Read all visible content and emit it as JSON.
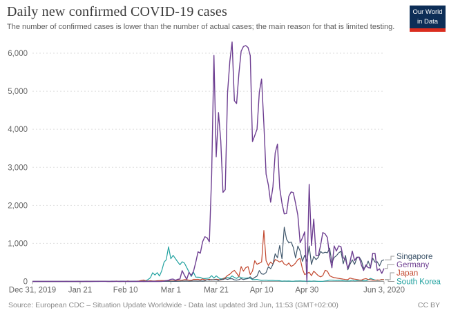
{
  "header": {
    "title": "Daily new confirmed COVID-19 cases",
    "subtitle": "The number of confirmed cases is lower than the number of actual cases; the main reason for that is limited testing.",
    "logo": {
      "line1": "Our World",
      "line2": "in Data",
      "navy": "#0d2e57",
      "red": "#da2c1e"
    }
  },
  "footer": {
    "source": "Source: European CDC – Situation Update Worldwide - Data last updated 3rd Jun, 11:53 (GMT+02:00)",
    "license": "CC BY"
  },
  "chart_data": {
    "type": "line",
    "title": "Daily new confirmed COVID-19 cases",
    "subtitle": "The number of confirmed cases is lower than the number of actual cases; the main reason for that is limited testing.",
    "start_date": "Dec 31, 2019",
    "end_date": "Jun 3, 2020",
    "x_range_days": 155,
    "ylim": [
      0,
      6300
    ],
    "grid": "horizontal-dashed",
    "legend_position": "right-of-line-ends",
    "y_axis": {
      "ticks": [
        0,
        1000,
        2000,
        3000,
        4000,
        5000,
        6000
      ],
      "labels": [
        "0",
        "1,000",
        "2,000",
        "3,000",
        "4,000",
        "5,000",
        "6,000"
      ]
    },
    "x_axis": {
      "ticks": [
        {
          "day": 0,
          "label": "Dec 31, 2019"
        },
        {
          "day": 21,
          "label": "Jan 21"
        },
        {
          "day": 41,
          "label": "Feb 10"
        },
        {
          "day": 61,
          "label": "Mar 1"
        },
        {
          "day": 81,
          "label": "Mar 21"
        },
        {
          "day": 101,
          "label": "Apr 10"
        },
        {
          "day": 121,
          "label": "Apr 30"
        },
        {
          "day": 155,
          "label": "Jun 3, 2020"
        }
      ]
    },
    "series": [
      {
        "name": "Singapore",
        "color": "#3f566b",
        "values": [
          0,
          0,
          0,
          0,
          0,
          0,
          0,
          0,
          0,
          0,
          0,
          0,
          0,
          0,
          0,
          0,
          0,
          0,
          0,
          0,
          0,
          0,
          0,
          1,
          2,
          1,
          0,
          1,
          2,
          3,
          3,
          3,
          2,
          0,
          0,
          6,
          4,
          2,
          3,
          7,
          7,
          3,
          2,
          3,
          5,
          8,
          5,
          0,
          3,
          0,
          1,
          1,
          2,
          5,
          2,
          1,
          0,
          2,
          2,
          4,
          4,
          4,
          2,
          2,
          4,
          5,
          13,
          9,
          12,
          6,
          10,
          12,
          13,
          9,
          14,
          9,
          17,
          47,
          32,
          47,
          40,
          47,
          23,
          54,
          49,
          73,
          52,
          71,
          70,
          42,
          35,
          47,
          74,
          49,
          65,
          75,
          120,
          66,
          106,
          142,
          287,
          198,
          191,
          233,
          386,
          334,
          447,
          728,
          623,
          942,
          596,
          1426,
          1111,
          1016,
          1037,
          897,
          618,
          931,
          799,
          528,
          690,
          528,
          932,
          447,
          657,
          573,
          632,
          788,
          741,
          768,
          753,
          876,
          486,
          632,
          675,
          752,
          793,
          465,
          682,
          305,
          451,
          570,
          448,
          614,
          642,
          548,
          344,
          383,
          533,
          373,
          611,
          506,
          518,
          408,
          544,
          569
        ]
      },
      {
        "name": "Germany",
        "color": "#6d3e91",
        "values": [
          0,
          0,
          0,
          0,
          0,
          0,
          0,
          0,
          0,
          0,
          0,
          0,
          0,
          0,
          0,
          0,
          0,
          0,
          0,
          0,
          0,
          0,
          0,
          0,
          0,
          0,
          0,
          0,
          1,
          3,
          1,
          2,
          2,
          2,
          2,
          0,
          0,
          1,
          1,
          0,
          0,
          2,
          0,
          0,
          1,
          0,
          0,
          0,
          0,
          0,
          0,
          0,
          0,
          0,
          0,
          0,
          1,
          2,
          10,
          21,
          31,
          57,
          62,
          30,
          54,
          66,
          284,
          163,
          55,
          237,
          157,
          271,
          502,
          779,
          743,
          1043,
          1174,
          1144,
          1042,
          2801,
          5940,
          3276,
          4438,
          3697,
          2342,
          2415,
          4954,
          5780,
          6294,
          4751,
          4674,
          5453,
          6050,
          6174,
          6200,
          6150,
          5936,
          3677,
          3834,
          4003,
          4974,
          5323,
          4133,
          2821,
          2537,
          2082,
          2486,
          3380,
          3609,
          2458,
          2055,
          1775,
          1785,
          2237,
          2352,
          2337,
          2055,
          1737,
          1018,
          1144,
          1304,
          0,
          2550,
          945,
          1639,
          679,
          685,
          947,
          1284,
          1251,
          1158,
          667,
          357,
          933,
          798,
          933,
          913,
          620,
          583,
          342,
          513,
          797,
          548,
          639,
          638,
          431,
          289,
          432,
          362,
          353,
          741,
          738,
          286,
          333,
          213,
          342
        ]
      },
      {
        "name": "Japan",
        "color": "#c2472e",
        "values": [
          0,
          0,
          0,
          0,
          0,
          0,
          0,
          0,
          0,
          0,
          0,
          0,
          0,
          0,
          0,
          1,
          0,
          0,
          0,
          0,
          1,
          0,
          0,
          0,
          1,
          0,
          1,
          1,
          1,
          2,
          1,
          3,
          3,
          0,
          0,
          0,
          2,
          9,
          0,
          0,
          3,
          0,
          12,
          5,
          4,
          6,
          8,
          12,
          25,
          39,
          14,
          12,
          19,
          12,
          13,
          18,
          22,
          24,
          20,
          24,
          14,
          15,
          14,
          16,
          33,
          31,
          32,
          47,
          46,
          33,
          26,
          54,
          52,
          55,
          41,
          64,
          44,
          46,
          54,
          36,
          49,
          57,
          47,
          39,
          65,
          98,
          158,
          188,
          248,
          290,
          217,
          127,
          390,
          270,
          360,
          390,
          180,
          270,
          545,
          450,
          480,
          510,
          1340,
          545,
          420,
          510,
          455,
          575,
          545,
          510,
          545,
          455,
          425,
          485,
          395,
          425,
          485,
          575,
          605,
          330,
          180,
          210,
          240,
          150,
          270,
          210,
          150,
          120,
          150,
          290,
          270,
          150,
          120,
          100,
          90,
          80,
          70,
          60,
          50,
          45,
          90,
          70,
          60,
          50,
          40,
          35,
          60,
          75,
          50,
          45,
          35,
          30,
          40,
          35,
          50,
          45
        ]
      },
      {
        "name": "South Korea",
        "color": "#22a2a0",
        "values": [
          0,
          0,
          0,
          0,
          0,
          0,
          0,
          0,
          0,
          0,
          0,
          0,
          0,
          0,
          0,
          0,
          0,
          0,
          0,
          0,
          1,
          0,
          0,
          0,
          1,
          0,
          1,
          1,
          0,
          0,
          1,
          1,
          1,
          1,
          0,
          1,
          5,
          1,
          0,
          1,
          3,
          1,
          0,
          1,
          0,
          0,
          0,
          1,
          1,
          15,
          20,
          53,
          100,
          229,
          169,
          231,
          144,
          284,
          505,
          571,
          909,
          595,
          686,
          600,
          516,
          438,
          518,
          483,
          367,
          248,
          131,
          242,
          114,
          110,
          107,
          76,
          74,
          84,
          93,
          152,
          87,
          147,
          98,
          64,
          76,
          100,
          104,
          91,
          146,
          105,
          78,
          125,
          101,
          89,
          86,
          94,
          81,
          47,
          47,
          53,
          39,
          27,
          30,
          32,
          25,
          27,
          27,
          22,
          22,
          18,
          8,
          13,
          9,
          11,
          8,
          6,
          10,
          10,
          14,
          9,
          9,
          4,
          9,
          6,
          13,
          8,
          3,
          2,
          4,
          12,
          18,
          34,
          35,
          27,
          26,
          29,
          27,
          19,
          13,
          15,
          13,
          32,
          12,
          20,
          23,
          25,
          16,
          19,
          40,
          79,
          58,
          39,
          27,
          35,
          38,
          49
        ]
      }
    ]
  }
}
